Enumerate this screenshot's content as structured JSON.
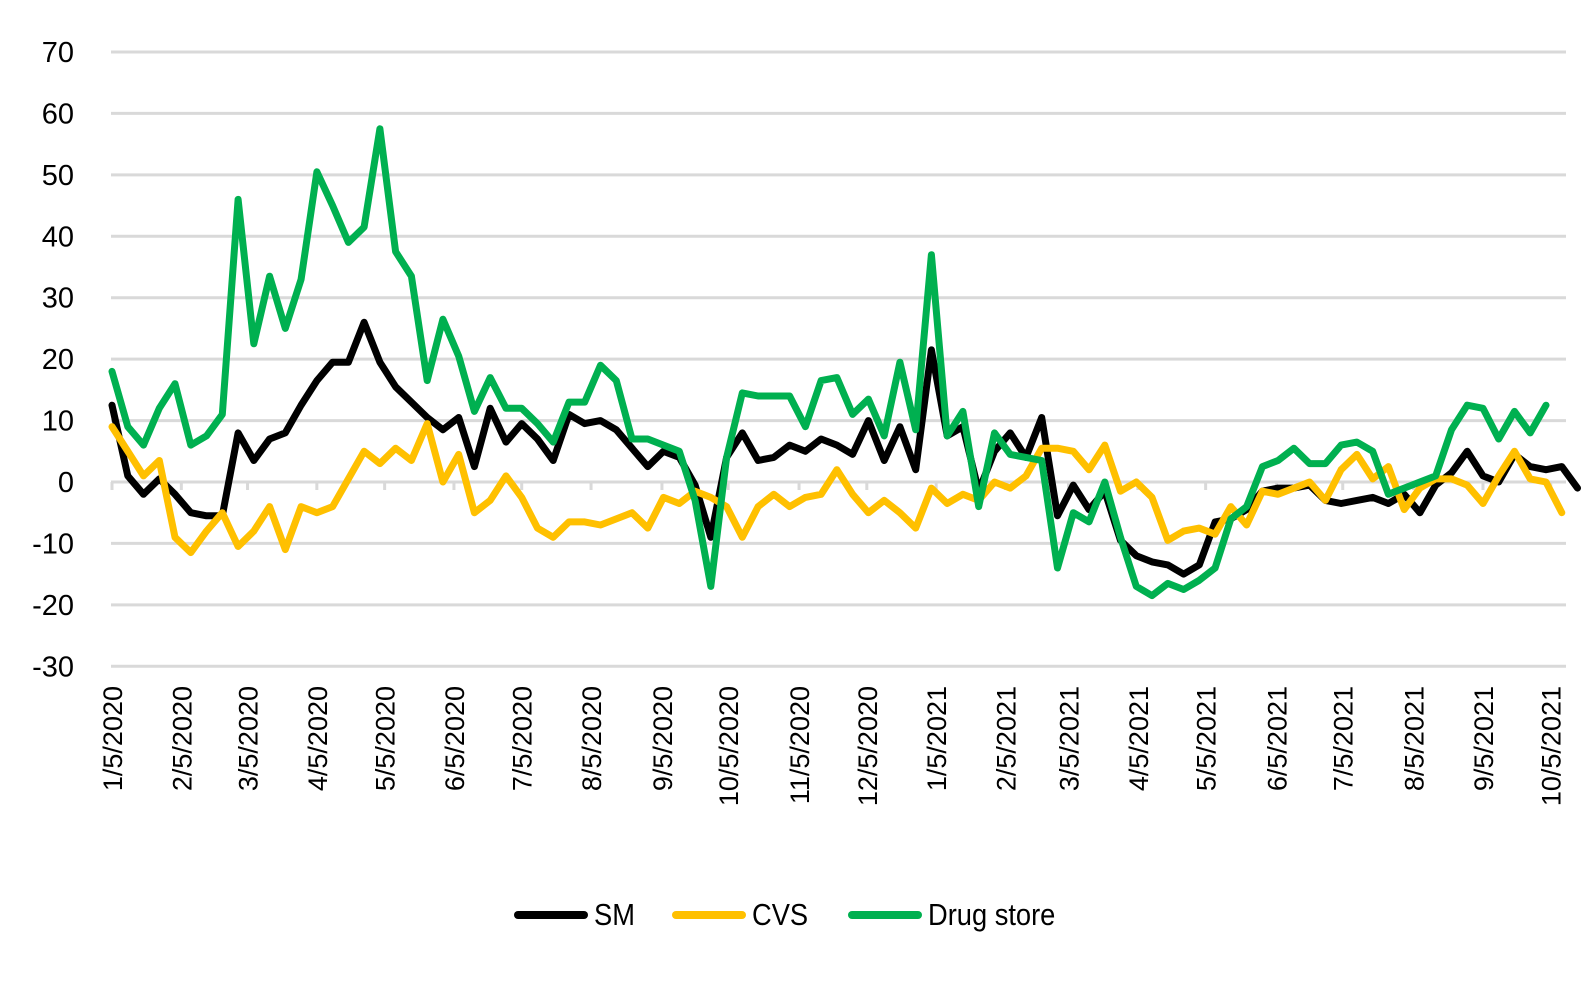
{
  "chart_data": {
    "type": "line",
    "title": "",
    "xlabel": "",
    "ylabel": "",
    "ylim": [
      -30,
      70
    ],
    "yticks": [
      "70",
      "60",
      "50",
      "40",
      "30",
      "20",
      "10",
      "0",
      "-10",
      "-20",
      "-30"
    ],
    "ytick_values": [
      70,
      60,
      50,
      40,
      30,
      20,
      10,
      0,
      -10,
      -20,
      -30
    ],
    "grid": true,
    "legend_position": "bottom",
    "x_tick_labels": [
      "1/5/2020",
      "2/5/2020",
      "3/5/2020",
      "4/5/2020",
      "5/5/2020",
      "6/5/2020",
      "7/5/2020",
      "8/5/2020",
      "9/5/2020",
      "10/5/2020",
      "11/5/2020",
      "12/5/2020",
      "1/5/2021",
      "2/5/2021",
      "3/5/2021",
      "4/5/2021",
      "5/5/2021",
      "6/5/2021",
      "7/5/2021",
      "8/5/2021",
      "9/5/2021",
      "10/5/2021"
    ],
    "x_tick_indices": [
      0,
      4.4,
      8.6,
      13,
      17.3,
      21.7,
      26,
      30.4,
      34.9,
      39.1,
      43.6,
      47.9,
      52.3,
      56.7,
      60.7,
      65.1,
      69.4,
      73.9,
      78.1,
      82.6,
      87,
      91.3
    ],
    "n_points": 92,
    "series": [
      {
        "name": "SM",
        "color": "#000000",
        "values": [
          12.5,
          1,
          -2,
          0.5,
          -2,
          -5,
          -5.5,
          -5.5,
          8,
          3.5,
          7,
          8,
          12.5,
          16.5,
          19.5,
          19.5,
          26,
          19.5,
          15.5,
          13,
          10.5,
          8.5,
          10.5,
          2.5,
          12,
          6.5,
          9.5,
          7,
          3.5,
          11,
          9.5,
          10,
          8.5,
          5.5,
          2.5,
          5,
          4,
          -0.5,
          -9,
          4,
          8,
          3.5,
          4,
          6,
          5,
          7,
          6,
          4.5,
          10,
          3.5,
          9,
          2,
          21.5,
          7.5,
          9,
          -1.5,
          5,
          8,
          4,
          10.5,
          -5.5,
          -0.5,
          -4.5,
          -1.5,
          -9.5,
          -12,
          -13,
          -13.5,
          -15,
          -13.5,
          -6.5,
          -6,
          -4.5,
          -1.5,
          -1,
          -1,
          -0.5,
          -3,
          -3.5,
          -3,
          -2.5,
          -3.5,
          -2,
          -5,
          -0.5,
          1.5,
          5,
          1,
          0,
          4.5,
          2.5,
          2,
          2.5,
          -1
        ]
      },
      {
        "name": "CVS",
        "color": "#FFC000",
        "values": [
          9,
          5,
          1,
          3.5,
          -9,
          -11.5,
          -8,
          -5,
          -10.5,
          -8,
          -4,
          -11,
          -4,
          -5,
          -4,
          0.5,
          5,
          3,
          5.5,
          3.5,
          9.5,
          0,
          4.5,
          -5,
          -3,
          1,
          -2.5,
          -7.5,
          -9,
          -6.5,
          -6.5,
          -7,
          -6,
          -5,
          -7.5,
          -2.5,
          -3.5,
          -1.5,
          -2.5,
          -4,
          -9,
          -4,
          -2,
          -4,
          -2.5,
          -2,
          2,
          -2,
          -5,
          -3,
          -5,
          -7.5,
          -1,
          -3.5,
          -2,
          -3,
          0,
          -1,
          1,
          5.5,
          5.5,
          5,
          2,
          6,
          -1.5,
          0,
          -2.5,
          -9.5,
          -8,
          -7.5,
          -8.5,
          -4,
          -7,
          -1.5,
          -2,
          -1,
          0,
          -3,
          2,
          4.5,
          0.5,
          2.5,
          -4.5,
          -1,
          0.5,
          0.5,
          -0.5,
          -3.5,
          1,
          5,
          0.5,
          0,
          -5
        ]
      },
      {
        "name": "Drug store",
        "color": "#00B050",
        "values": [
          18,
          9,
          6,
          12,
          16,
          6,
          7.5,
          11,
          46,
          22.5,
          33.5,
          25,
          33,
          50.5,
          45,
          39,
          41.5,
          57.5,
          37.5,
          33.5,
          16.5,
          26.5,
          20.5,
          11.5,
          17,
          12,
          12,
          9.5,
          6.5,
          13,
          13,
          19,
          16.5,
          7,
          7,
          6,
          5,
          -3,
          -17,
          4,
          14.5,
          14,
          14,
          14,
          9,
          16.5,
          17,
          11,
          13.5,
          7.5,
          19.5,
          8.5,
          37,
          7.5,
          11.5,
          -4,
          8,
          4.5,
          4,
          3.5,
          -14,
          -5,
          -6.5,
          0,
          -9,
          -17,
          -18.5,
          -16.5,
          -17.5,
          -16,
          -14,
          -6,
          -4,
          2.5,
          3.5,
          5.5,
          3,
          3,
          6,
          6.5,
          5,
          -2,
          -1,
          0,
          1,
          8.5,
          12.5,
          12,
          7,
          11.5,
          8,
          12.5
        ]
      }
    ]
  },
  "legend": {
    "items": [
      {
        "label": "SM",
        "color": "#000000"
      },
      {
        "label": "CVS",
        "color": "#FFC000"
      },
      {
        "label": "Drug store",
        "color": "#00B050"
      }
    ]
  },
  "colors": {
    "grid": "#D9D9D9",
    "axis": "#D9D9D9",
    "text": "#000000"
  }
}
